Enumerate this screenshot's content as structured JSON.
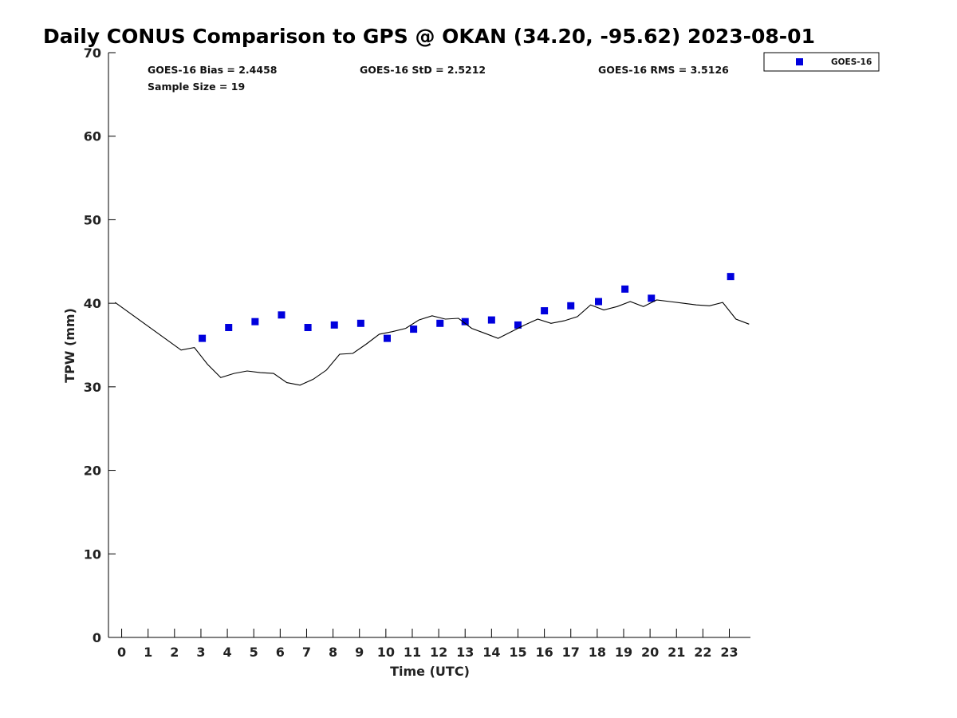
{
  "chart_data": {
    "type": "scatter",
    "title": "Daily CONUS Comparison to GPS @ OKAN (34.20, -95.62) 2023-08-01",
    "xlabel": "Time (UTC)",
    "ylabel": "TPW (mm)",
    "xlim": [
      -0.5,
      23.8
    ],
    "ylim": [
      0,
      70
    ],
    "xticks": [
      "0",
      "1",
      "2",
      "3",
      "4",
      "5",
      "6",
      "7",
      "8",
      "9",
      "10",
      "11",
      "12",
      "13",
      "14",
      "15",
      "16",
      "17",
      "18",
      "19",
      "20",
      "21",
      "22",
      "23"
    ],
    "yticks": [
      "0",
      "10",
      "20",
      "30",
      "40",
      "50",
      "60",
      "70"
    ],
    "grid": false,
    "legend_position": "top-right, outside plot",
    "stats": {
      "bias": "GOES-16 Bias = 2.4458",
      "std": "GOES-16 StD = 2.5212",
      "rms": "GOES-16 RMS = 3.5126",
      "sample": "Sample Size = 19"
    },
    "series": [
      {
        "name": "GOES-16",
        "kind": "scatter",
        "marker": "square",
        "color": "#0000dd",
        "x": [
          3.05,
          4.05,
          5.05,
          6.05,
          7.05,
          8.05,
          9.05,
          10.05,
          11.05,
          12.05,
          13.0,
          14.0,
          15.0,
          16.0,
          17.0,
          18.05,
          19.05,
          20.05,
          23.05
        ],
        "y": [
          35.8,
          37.1,
          37.8,
          38.6,
          37.1,
          37.4,
          37.6,
          35.8,
          36.9,
          37.6,
          37.8,
          38.0,
          37.4,
          39.1,
          39.7,
          40.2,
          41.7,
          40.6,
          43.2
        ]
      },
      {
        "kind": "line",
        "color": "#000000",
        "x": [
          -0.25,
          2.25,
          2.75,
          3.25,
          3.75,
          4.25,
          4.75,
          5.25,
          5.75,
          6.25,
          6.75,
          7.25,
          7.75,
          8.25,
          8.75,
          9.25,
          9.75,
          10.25,
          10.75,
          11.25,
          11.75,
          12.25,
          12.75,
          13.25,
          13.75,
          14.25,
          14.75,
          15.25,
          15.75,
          16.25,
          16.75,
          17.25,
          17.75,
          18.25,
          18.75,
          19.25,
          19.75,
          20.25,
          20.75,
          21.25,
          21.75,
          22.25,
          22.75,
          23.25,
          23.75
        ],
        "y": [
          40.1,
          34.4,
          34.7,
          32.7,
          31.1,
          31.6,
          31.9,
          31.7,
          31.6,
          30.5,
          30.2,
          30.9,
          32.0,
          33.9,
          34.0,
          35.1,
          36.3,
          36.6,
          37.0,
          38.0,
          38.5,
          38.1,
          38.2,
          37.0,
          36.4,
          35.8,
          36.6,
          37.4,
          38.1,
          37.6,
          37.9,
          38.4,
          39.8,
          39.2,
          39.6,
          40.2,
          39.6,
          40.4,
          40.2,
          40.0,
          39.8,
          39.7,
          40.1,
          38.1,
          37.5
        ]
      }
    ]
  }
}
